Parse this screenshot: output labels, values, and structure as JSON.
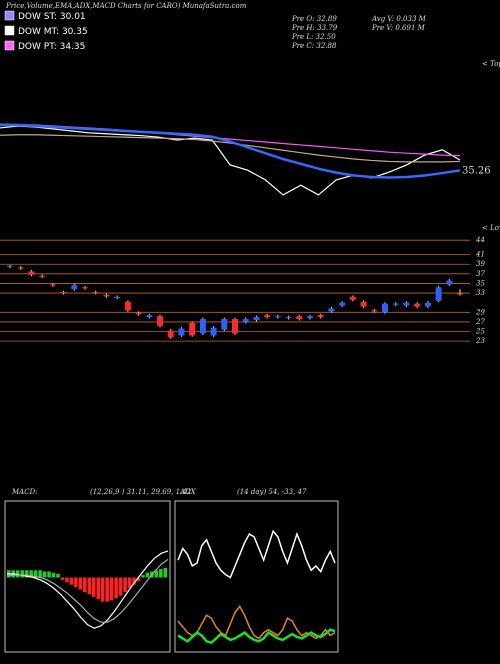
{
  "header": {
    "title": "Price,Volume,EMA,ADX,MACD Charts for CARO) MunafaSutra.com",
    "legend": [
      {
        "label": "DOW ST: 30.01",
        "color": "#8c8cff"
      },
      {
        "label": "DOW MT: 30.35",
        "color": "#ffffff"
      },
      {
        "label": "DOW PT: 34.35",
        "color": "#ff66ff"
      }
    ],
    "stats": [
      [
        "Pre O: 32.89",
        "Pre H: 33.79",
        "Pre L: 32.50",
        "Pre C: 32.88"
      ],
      [
        "Avg V: 0.033 M",
        "Pre V: 0.691 M"
      ]
    ]
  },
  "chart_data": [
    {
      "type": "line",
      "side_label": "< Tops",
      "ylim": [
        24,
        58
      ],
      "last_value": 35.26,
      "series": [
        {
          "color": "#ffffff",
          "values": [
            44.0,
            44.4,
            44.2,
            43.8,
            43.4,
            43.0,
            42.8,
            42.6,
            42.4,
            42.1,
            41.5,
            41.9,
            41.5,
            36.4,
            35.3,
            33.3,
            30.2,
            32.2,
            30.2,
            33.3,
            34.3,
            33.7,
            34.9,
            36.4,
            38.4,
            39.5,
            37.4
          ]
        },
        {
          "color": "#c8a882",
          "values": [
            42.5,
            42.6,
            42.6,
            42.5,
            42.4,
            42.3,
            42.2,
            42.1,
            42.0,
            41.9,
            41.8,
            41.6,
            41.3,
            40.9,
            40.4,
            39.9,
            39.4,
            38.9,
            38.4,
            38.0,
            37.6,
            37.3,
            37.1,
            37.0,
            37.0,
            37.0,
            37.1
          ]
        },
        {
          "color": "#ff55ff",
          "values": [
            44.8,
            44.7,
            44.6,
            44.4,
            44.2,
            44.0,
            43.8,
            43.5,
            43.2,
            42.9,
            42.6,
            42.3,
            42.0,
            41.7,
            41.4,
            41.1,
            40.8,
            40.5,
            40.2,
            39.9,
            39.6,
            39.3,
            39.0,
            38.8,
            38.6,
            38.4,
            38.3
          ]
        },
        {
          "color": "#2f6bff",
          "values": [
            44.6,
            44.6,
            44.4,
            44.2,
            44.0,
            43.8,
            43.6,
            43.4,
            43.2,
            43.0,
            42.8,
            42.6,
            42.2,
            41.2,
            40.0,
            38.8,
            37.6,
            36.6,
            35.6,
            34.8,
            34.2,
            33.9,
            33.8,
            33.9,
            34.2,
            34.7,
            35.26
          ]
        }
      ]
    },
    {
      "type": "candlestick",
      "side_label": "< Lows",
      "ylim": [
        22.2,
        45.7
      ],
      "yticks": [
        44,
        41,
        39,
        37,
        35,
        33,
        29,
        27,
        25,
        23
      ],
      "open": [
        38.5,
        38.3,
        37.5,
        36.6,
        34.8,
        33.2,
        33.8,
        34.2,
        33.2,
        32.6,
        32.0,
        31.2,
        28.9,
        28.0,
        28.2,
        25.2,
        24.2,
        26.8,
        24.6,
        24.2,
        25.4,
        27.6,
        27.0,
        27.4,
        28.4,
        28.0,
        27.8,
        28.2,
        27.8,
        28.4,
        29.2,
        30.4,
        32.2,
        31.2,
        29.4,
        29.0,
        30.6,
        30.4,
        30.8,
        30.2,
        31.4,
        34.8,
        32.89
      ],
      "high": [
        38.9,
        38.6,
        37.8,
        36.9,
        35.1,
        33.5,
        34.9,
        34.5,
        33.5,
        32.9,
        32.5,
        31.5,
        29.2,
        28.7,
        28.5,
        25.5,
        25.9,
        27.1,
        27.9,
        26.1,
        27.9,
        27.9,
        27.9,
        28.3,
        28.7,
        28.5,
        28.3,
        28.5,
        28.5,
        28.7,
        30.1,
        31.3,
        32.5,
        31.5,
        29.7,
        31.1,
        31.1,
        31.3,
        31.1,
        31.3,
        34.5,
        35.9,
        33.79
      ],
      "low": [
        38.2,
        37.8,
        36.5,
        36.1,
        34.3,
        32.7,
        33.5,
        33.7,
        32.7,
        32.0,
        31.7,
        29.1,
        28.3,
        27.7,
        25.9,
        23.5,
        23.9,
        23.9,
        24.3,
        23.9,
        25.1,
        24.3,
        26.7,
        27.1,
        27.7,
        27.7,
        27.5,
        27.3,
        27.5,
        27.7,
        28.9,
        30.1,
        31.3,
        29.9,
        28.9,
        28.7,
        30.3,
        30.1,
        29.9,
        29.9,
        31.1,
        34.5,
        32.5
      ],
      "close": [
        38.7,
        38.1,
        36.8,
        36.4,
        34.6,
        33.0,
        34.6,
        34.0,
        33.0,
        32.3,
        32.2,
        29.4,
        28.6,
        28.4,
        26.2,
        23.8,
        25.6,
        24.2,
        27.6,
        25.8,
        27.6,
        24.6,
        27.6,
        28.0,
        28.0,
        28.2,
        28.0,
        27.6,
        28.2,
        28.0,
        29.8,
        31.0,
        31.6,
        30.2,
        29.2,
        30.8,
        30.8,
        31.0,
        30.2,
        31.0,
        34.2,
        35.6,
        32.88
      ]
    },
    {
      "type": "macd",
      "title": "MACD:",
      "params": "(12,26,9 ) 31.11, 29.69, 1.42",
      "ylim": [
        -6,
        6
      ],
      "histogram": [
        0.6,
        0.6,
        0.6,
        0.6,
        0.6,
        0.6,
        0.6,
        0.6,
        0.5,
        0.5,
        0.4,
        0.3,
        -0.2,
        -0.4,
        -0.6,
        -0.8,
        -1.0,
        -1.2,
        -1.4,
        -1.6,
        -1.8,
        -2.0,
        -2.0,
        -1.9,
        -1.7,
        -1.5,
        -1.2,
        -0.9,
        -0.6,
        -0.3,
        0.2,
        0.4,
        0.5,
        0.6,
        0.7,
        0.8
      ],
      "series": [
        {
          "color": "#ffffff",
          "values": [
            0.3,
            0.3,
            0.2,
            0.1,
            0.0,
            -0.2,
            -0.5,
            -0.9,
            -1.4,
            -2.0,
            -2.6,
            -3.3,
            -3.9,
            -4.2,
            -4.0,
            -3.5,
            -2.8,
            -2.0,
            -1.2,
            -0.4,
            0.3,
            1.0,
            1.6,
            2.0,
            2.2
          ]
        },
        {
          "color": "#aaaaaa",
          "values": [
            0.1,
            0.2,
            0.2,
            0.2,
            0.1,
            0.0,
            -0.2,
            -0.5,
            -0.9,
            -1.3,
            -1.8,
            -2.3,
            -2.9,
            -3.4,
            -3.7,
            -3.7,
            -3.4,
            -2.9,
            -2.3,
            -1.6,
            -0.9,
            -0.2,
            0.5,
            1.1,
            1.5
          ]
        }
      ]
    },
    {
      "type": "adx",
      "title": "ADX",
      "params": "(14 day) 54, -33, 47",
      "ylim": [
        0,
        100
      ],
      "series": [
        {
          "color": "#ffffff",
          "values": [
            62,
            70,
            66,
            58,
            60,
            72,
            76,
            68,
            60,
            55,
            52,
            50,
            58,
            66,
            74,
            80,
            78,
            70,
            62,
            72,
            82,
            78,
            68,
            60,
            70,
            80,
            72,
            62,
            55,
            58,
            54,
            62,
            68,
            60
          ]
        },
        {
          "color": "#e08a1e",
          "values": [
            20,
            16,
            12,
            10,
            12,
            18,
            24,
            22,
            16,
            12,
            10,
            18,
            26,
            30,
            24,
            16,
            10,
            8,
            12,
            14,
            12,
            10,
            14,
            22,
            20,
            14,
            10,
            12,
            10,
            8,
            10,
            14,
            10,
            12
          ]
        },
        {
          "color": "#22dd22",
          "values": [
            10,
            8,
            6,
            9,
            12,
            10,
            6,
            5,
            8,
            11,
            9,
            7,
            8,
            10,
            12,
            9,
            7,
            6,
            8,
            12,
            10,
            8,
            7,
            9,
            11,
            9,
            8,
            10,
            12,
            10,
            9,
            11,
            14,
            13
          ]
        }
      ]
    }
  ]
}
